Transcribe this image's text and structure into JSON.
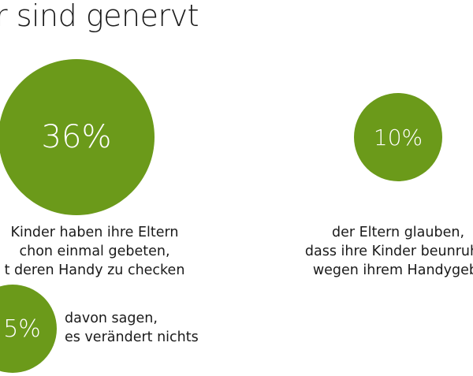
{
  "title": "r sind genervt",
  "accent_color": "#6b9a1a",
  "stats": [
    {
      "value": "36%",
      "caption": [
        "Kinder haben ihre Eltern",
        "chon einmal gebeten,",
        "t deren Handy zu checken"
      ]
    },
    {
      "value": "10%",
      "caption": [
        "der Eltern glauben,",
        "dass ihre Kinder beunruhig",
        "wegen ihrem Handygebr"
      ]
    },
    {
      "value": "5%",
      "caption": [
        "davon sagen,",
        "es verändert nichts"
      ]
    }
  ]
}
